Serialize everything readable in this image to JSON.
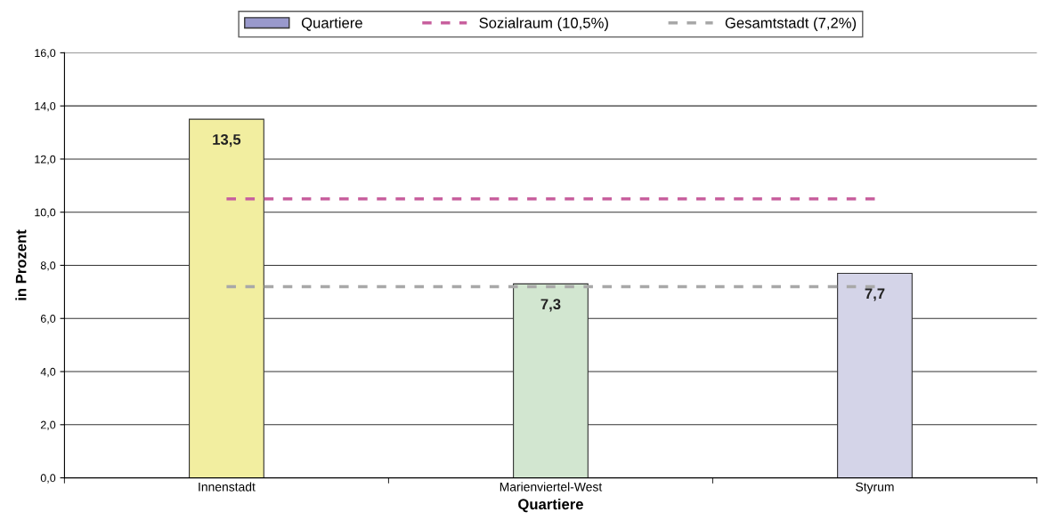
{
  "chart_data": {
    "type": "bar",
    "xlabel": "Quartiere",
    "ylabel": "in Prozent",
    "categories": [
      "Innenstadt",
      "Marienviertel-West",
      "Styrum"
    ],
    "series": [
      {
        "name": "Quartiere",
        "type": "bar",
        "color": "#9999cc",
        "colors": [
          "#f2eea0",
          "#d2e6d0",
          "#d4d4e8"
        ],
        "values": [
          13.5,
          7.3,
          7.7
        ],
        "value_labels": [
          "13,5",
          "7,3",
          "7,7"
        ]
      },
      {
        "name": "Sozialraum (10,5%)",
        "type": "line",
        "color": "#c8609e",
        "values": [
          10.5,
          10.5,
          10.5
        ]
      },
      {
        "name": "Gesamtstadt (7,2%)",
        "type": "line",
        "color": "#a8a8a8",
        "values": [
          7.2,
          7.2,
          7.2
        ]
      }
    ],
    "ylim": [
      0,
      16
    ],
    "yticks": [
      {
        "value": 0,
        "label": "0,0"
      },
      {
        "value": 2,
        "label": "2,0"
      },
      {
        "value": 4,
        "label": "4,0"
      },
      {
        "value": 6,
        "label": "6,0"
      },
      {
        "value": 8,
        "label": "8,0"
      },
      {
        "value": 10,
        "label": "10,0"
      },
      {
        "value": 12,
        "label": "12,0"
      },
      {
        "value": 14,
        "label": "14,0"
      },
      {
        "value": 16,
        "label": "16,0"
      }
    ],
    "grid": "y",
    "legend": "top",
    "line_style": "dashed"
  }
}
